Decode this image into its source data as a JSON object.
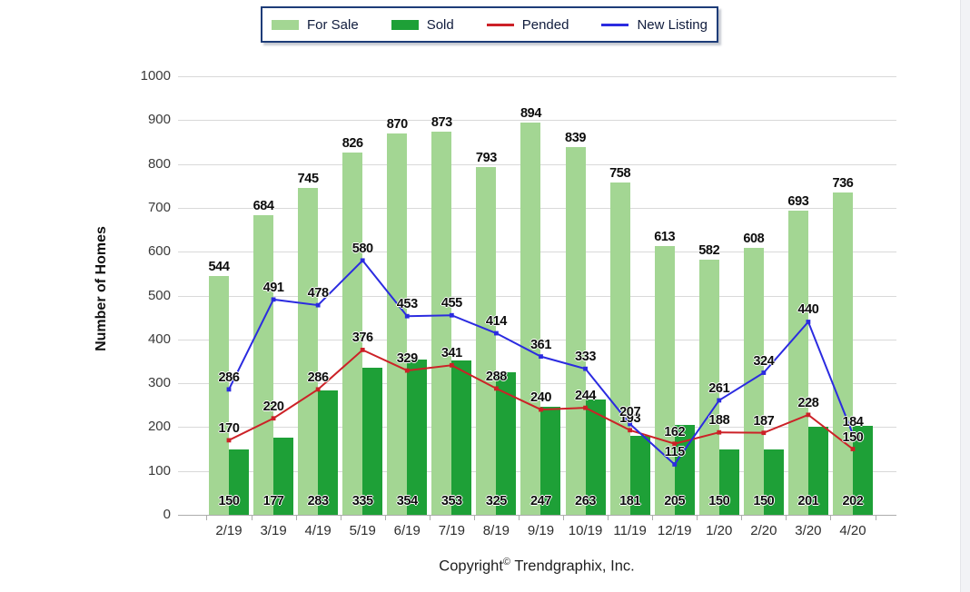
{
  "y_axis": {
    "label": "Number of Homes"
  },
  "footer": {
    "prefix": "Copyright",
    "symbol": "©",
    "company": "Trendgraphix, Inc."
  },
  "colors": {
    "for_sale": "#a3d693",
    "sold": "#1ea037",
    "pended": "#cc2127",
    "new_listing": "#2b2be0",
    "grid": "#d9d9d9",
    "axis": "#adadad",
    "legend_border": "#1e3c78"
  },
  "chart_data": {
    "type": "bar",
    "title": "",
    "xlabel": "",
    "ylabel": "Number of Homes",
    "ylim": [
      0,
      1000
    ],
    "ytick_step": 100,
    "grid": true,
    "legend_position": "top",
    "categories": [
      "2/19",
      "3/19",
      "4/19",
      "5/19",
      "6/19",
      "7/19",
      "8/19",
      "9/19",
      "10/19",
      "11/19",
      "12/19",
      "1/20",
      "2/20",
      "3/20",
      "4/20"
    ],
    "series": [
      {
        "name": "For Sale",
        "type": "bar",
        "color": "#a3d693",
        "values": [
          544,
          684,
          745,
          826,
          870,
          873,
          793,
          894,
          839,
          758,
          613,
          582,
          608,
          693,
          736
        ]
      },
      {
        "name": "Sold",
        "type": "bar",
        "color": "#1ea037",
        "values": [
          150,
          177,
          283,
          335,
          354,
          353,
          325,
          247,
          263,
          181,
          205,
          150,
          150,
          201,
          202
        ]
      },
      {
        "name": "Pended",
        "type": "line",
        "color": "#cc2127",
        "values": [
          170,
          220,
          286,
          376,
          329,
          341,
          288,
          240,
          244,
          193,
          162,
          188,
          187,
          228,
          150
        ]
      },
      {
        "name": "New Listing",
        "type": "line",
        "color": "#2b2be0",
        "values": [
          286,
          491,
          478,
          580,
          453,
          455,
          414,
          361,
          333,
          207,
          115,
          261,
          324,
          440,
          184
        ]
      }
    ]
  }
}
